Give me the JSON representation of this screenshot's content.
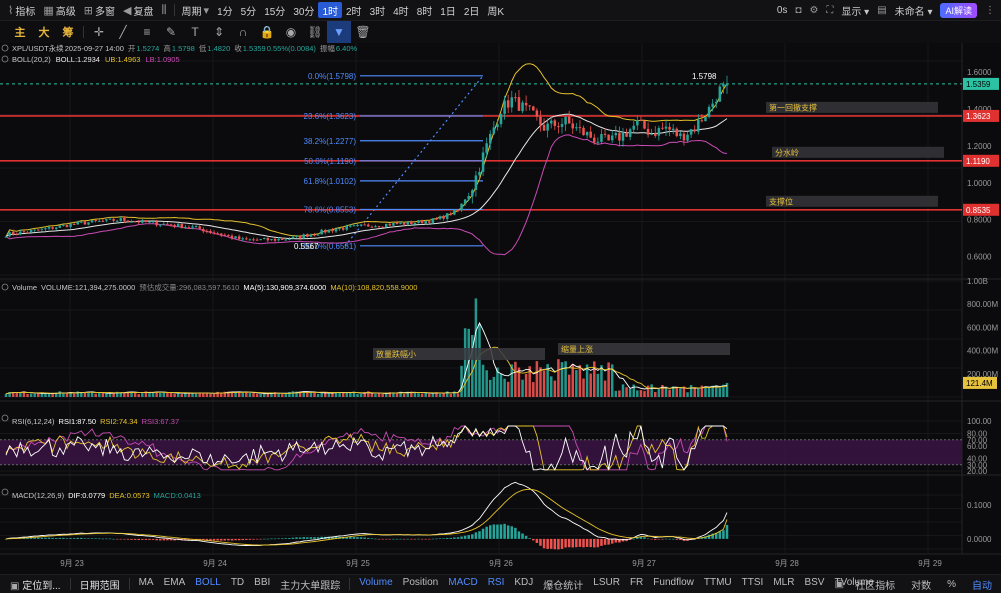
{
  "topbar": {
    "items": [
      {
        "icon": "indicator-icon",
        "label": "指标"
      },
      {
        "icon": "pro-icon",
        "label": "高级"
      },
      {
        "icon": "multi-window-icon",
        "label": "多窗"
      },
      {
        "icon": "replay-icon",
        "label": "复盘"
      },
      {
        "icon": "candle-type-icon",
        "label": ""
      },
      {
        "icon": "",
        "label": "周期"
      }
    ],
    "intervals": [
      "1分",
      "5分",
      "15分",
      "30分",
      "1时",
      "2时",
      "3时",
      "4时",
      "8时",
      "1日",
      "2日",
      "周K"
    ],
    "selected_interval": "1时",
    "right": {
      "countdown": "0s",
      "display_label": "显示",
      "layout_name": "未命名",
      "ai_label": "AI解读"
    }
  },
  "drawing_tools": [
    {
      "name": "main-force-icon",
      "glyph": "主"
    },
    {
      "name": "big-order-icon",
      "glyph": "大"
    },
    {
      "name": "chip-icon",
      "glyph": "筹"
    },
    {
      "name": "crosshair-icon",
      "glyph": "✛"
    },
    {
      "name": "trendline-icon",
      "glyph": "╱"
    },
    {
      "name": "fib-icon",
      "glyph": "≡"
    },
    {
      "name": "brush-icon",
      "glyph": "✎"
    },
    {
      "name": "text-icon",
      "glyph": "T"
    },
    {
      "name": "measure-icon",
      "glyph": "⇕"
    },
    {
      "name": "magnet-icon",
      "glyph": "∩"
    },
    {
      "name": "lock-icon",
      "glyph": "🔒"
    },
    {
      "name": "eye-icon",
      "glyph": "◉"
    },
    {
      "name": "link-icon",
      "glyph": "⛓"
    },
    {
      "name": "filter-icon",
      "glyph": "▼"
    },
    {
      "name": "trash-icon",
      "glyph": "🗑"
    }
  ],
  "header": {
    "symbol": "XPL/USDT永续",
    "time": "2025-09-27 14:00",
    "open_label": "开",
    "open": "1.5274",
    "high_label": "高",
    "high": "1.5798",
    "low_label": "低",
    "low": "1.4820",
    "close_label": "收",
    "close": "1.5359",
    "change": "0.55%(0.0084)",
    "amp_label": "振幅",
    "amplitude": "6.40%",
    "boll_label": "BOLL(20,2)",
    "boll": "BOLL:1.2934",
    "ub": "UB:1.4963",
    "lb": "LB:1.0905"
  },
  "volume_header": {
    "label": "Volume",
    "volume": "VOLUME:121,394,275.0000",
    "est": "预估成交量:296,083,597.5610",
    "ma5": "MA(5):130,909,374.6000",
    "ma10": "MA(10):108,820,558.9000"
  },
  "rsi_header": {
    "label": "RSI(6,12,24)",
    "rsi1": "RSI1:87.50",
    "rsi2": "RSI2:74.34",
    "rsi3": "RSI3:67.37"
  },
  "macd_header": {
    "label": "MACD(12,26,9)",
    "dif": "DIF:0.0779",
    "dea": "DEA:0.0573",
    "macd": "MACD:0.0413"
  },
  "colors": {
    "up": "#26a69a",
    "down": "#ef5350",
    "boll_mid": "#e8e8e8",
    "boll_ub": "#e6c229",
    "boll_lb": "#c94bb5",
    "fib": "#4f8cff",
    "hline": "#e03131",
    "price_tag": "#2bc3a4",
    "rsi1": "#ffffff",
    "rsi2": "#e6c229",
    "rsi3": "#c94bb5",
    "ma5": "#ffffff",
    "ma10": "#e6c229"
  },
  "price_axis": {
    "ticks": [
      "1.6000",
      "1.4000",
      "1.2000",
      "1.0000",
      "0.8000",
      "0.6000"
    ],
    "current_price": "1.5359"
  },
  "volume_axis": {
    "ticks": [
      "1.00B",
      "800.00M",
      "600.00M",
      "400.00M",
      "200.00M"
    ],
    "current": "121.4M"
  },
  "rsi_axis": {
    "ticks": [
      "100.00",
      "80.00",
      "70.00",
      "60.00",
      "40.00",
      "30.00",
      "20.00"
    ]
  },
  "macd_axis": {
    "ticks": [
      "0.1000",
      "0.0000"
    ]
  },
  "time_axis": [
    "9月 23",
    "9月 24",
    "9月 25",
    "9月 26",
    "9月 27",
    "9月 28",
    "9月 29"
  ],
  "fibonacci": [
    {
      "label": "0.0%(1.5798)",
      "price": 1.5798
    },
    {
      "label": "23.6%(1.3623)",
      "price": 1.3623
    },
    {
      "label": "38.2%(1.2277)",
      "price": 1.2277
    },
    {
      "label": "50.0%(1.1190)",
      "price": 1.119
    },
    {
      "label": "61.8%(1.0102)",
      "price": 1.0102
    },
    {
      "label": "78.6%(0.8553)",
      "price": 0.8553
    },
    {
      "label": "100.0%(0.6581)",
      "price": 0.6581
    }
  ],
  "horizontal_lines": [
    {
      "price": 1.3623,
      "label": "1.3623",
      "note": "第一回撤支撑"
    },
    {
      "price": 1.119,
      "label": "1.1190",
      "note": "分水岭"
    },
    {
      "price": 0.8535,
      "label": "0.8535",
      "note": "支撑位"
    }
  ],
  "annotations": {
    "high_label": "1.5798",
    "low_label": "0.5567",
    "vol_note_1": "放量跌幅小",
    "vol_note_2": "缩量上涨"
  },
  "bottombar": {
    "locate_label": "定位到...",
    "date_range_label": "日期范围",
    "main_indicators": [
      "MA",
      "EMA",
      "BOLL",
      "TD",
      "BBI",
      "主力大单跟踪"
    ],
    "selected_main": "BOLL",
    "sub_indicators": [
      "Volume",
      "Position",
      "MACD",
      "RSI",
      "KDJ",
      "爆仓统计",
      "LSUR",
      "FR",
      "Fundflow",
      "TTMU",
      "TTSI",
      "MLR",
      "BSV",
      "TVolume"
    ],
    "selected_sub": [
      "Volume",
      "MACD",
      "RSI"
    ],
    "right_items": [
      "社区指标",
      "对数",
      "%",
      "自动"
    ]
  },
  "chart_data": {
    "type": "candlestick",
    "symbol": "XPL/USDT永续",
    "interval": "1时",
    "price_range": [
      0.5,
      1.66
    ],
    "x_labels": [
      "9月 23",
      "9月 24",
      "9月 25",
      "9月 26",
      "9月 27",
      "9月 28",
      "9月 29"
    ],
    "last": {
      "open": 1.5274,
      "high": 1.5798,
      "low": 1.482,
      "close": 1.5359
    },
    "boll": {
      "mid": 1.2934,
      "ub": 1.4963,
      "lb": 1.0905
    },
    "volume_last": 121394275,
    "rsi": {
      "rsi6": 87.5,
      "rsi12": 74.34,
      "rsi24": 67.37
    },
    "macd": {
      "dif": 0.0779,
      "dea": 0.0573,
      "hist": 0.0413
    },
    "close_anchors": [
      [
        0,
        0.72
      ],
      [
        8,
        0.74
      ],
      [
        20,
        0.78
      ],
      [
        32,
        0.8
      ],
      [
        42,
        0.78
      ],
      [
        52,
        0.76
      ],
      [
        60,
        0.72
      ],
      [
        66,
        0.69
      ],
      [
        74,
        0.69
      ],
      [
        80,
        0.7
      ],
      [
        92,
        0.75
      ],
      [
        102,
        0.77
      ],
      [
        112,
        0.78
      ],
      [
        120,
        0.8
      ],
      [
        126,
        0.85
      ],
      [
        130,
        0.98
      ],
      [
        134,
        1.2
      ],
      [
        138,
        1.4
      ],
      [
        141,
        1.45
      ],
      [
        146,
        1.38
      ],
      [
        150,
        1.3
      ],
      [
        156,
        1.33
      ],
      [
        160,
        1.28
      ],
      [
        164,
        1.24
      ],
      [
        168,
        1.22
      ],
      [
        172,
        1.26
      ],
      [
        176,
        1.32
      ],
      [
        180,
        1.27
      ],
      [
        184,
        1.3
      ],
      [
        188,
        1.25
      ],
      [
        192,
        1.3
      ],
      [
        196,
        1.4
      ],
      [
        200,
        1.5364
      ],
      [
        201,
        1.5359
      ]
    ]
  }
}
